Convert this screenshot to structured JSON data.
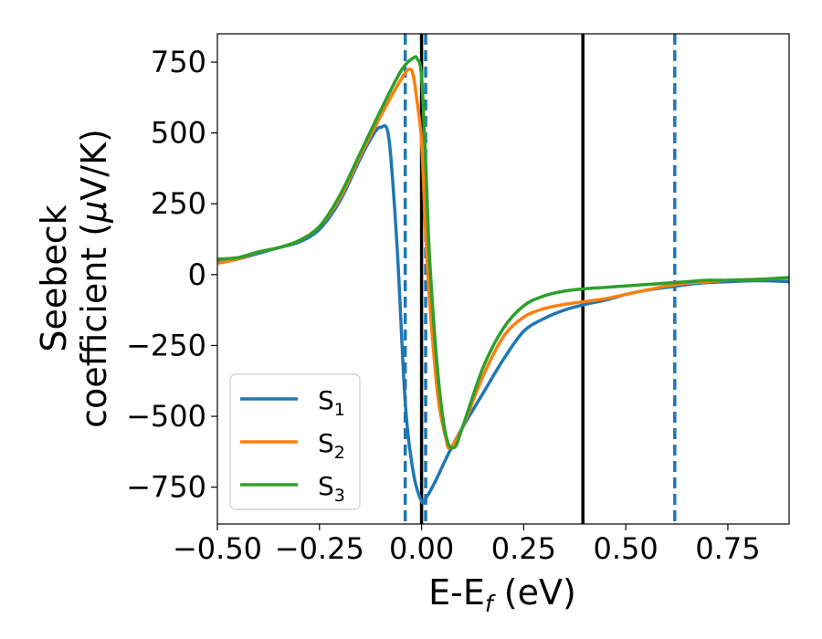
{
  "chart_data": {
    "type": "line",
    "xlabel": "E-E",
    "xlabel_sub": "f",
    "xlabel_unit": " (eV)",
    "ylabel_line1": "Seebeck",
    "ylabel_line2_prefix": "coefficient  (",
    "ylabel_mu": "μ",
    "ylabel_line2_suffix": "V/K)",
    "xlim": [
      -0.5,
      0.9
    ],
    "ylim": [
      -880,
      850
    ],
    "xticks": [
      -0.5,
      -0.25,
      0.0,
      0.25,
      0.5,
      0.75
    ],
    "xtick_labels": [
      "−0.50",
      "−0.25",
      "0.00",
      "0.25",
      "0.50",
      "0.75"
    ],
    "yticks": [
      750,
      500,
      250,
      0,
      -250,
      -500,
      -750
    ],
    "ytick_labels": [
      "750",
      "500",
      "250",
      "0",
      "−250",
      "−500",
      "−750"
    ],
    "grid": false,
    "legend_position": "lower-left",
    "vlines_solid": [
      0.0,
      0.395
    ],
    "vlines_dashed": [
      -0.04,
      0.01,
      0.62
    ],
    "vline_solid_color": "#000000",
    "vline_dashed_color": "#1f77b4",
    "series": [
      {
        "name": "S",
        "sub": "1",
        "color": "#1f77b4",
        "x": [
          -0.5,
          -0.45,
          -0.4,
          -0.35,
          -0.3,
          -0.25,
          -0.2,
          -0.15,
          -0.12,
          -0.1,
          -0.08,
          -0.06,
          -0.04,
          -0.02,
          0.0,
          0.01,
          0.03,
          0.05,
          0.07,
          0.1,
          0.15,
          0.2,
          0.25,
          0.3,
          0.35,
          0.4,
          0.45,
          0.5,
          0.55,
          0.6,
          0.65,
          0.7,
          0.75,
          0.8,
          0.85,
          0.9
        ],
        "y": [
          45,
          55,
          75,
          95,
          115,
          160,
          260,
          410,
          490,
          520,
          480,
          100,
          -450,
          -700,
          -800,
          -790,
          -740,
          -680,
          -620,
          -540,
          -420,
          -300,
          -200,
          -155,
          -125,
          -105,
          -90,
          -70,
          -55,
          -45,
          -35,
          -28,
          -25,
          -22,
          -22,
          -25
        ]
      },
      {
        "name": "S",
        "sub": "2",
        "color": "#ff7f0e",
        "x": [
          -0.5,
          -0.45,
          -0.4,
          -0.35,
          -0.3,
          -0.25,
          -0.2,
          -0.15,
          -0.1,
          -0.05,
          -0.03,
          -0.02,
          -0.01,
          0.0,
          0.01,
          0.02,
          0.04,
          0.06,
          0.07,
          0.1,
          0.15,
          0.2,
          0.25,
          0.3,
          0.35,
          0.4,
          0.45,
          0.5,
          0.55,
          0.6,
          0.65,
          0.7,
          0.75,
          0.8,
          0.85,
          0.9
        ],
        "y": [
          40,
          55,
          80,
          95,
          120,
          170,
          270,
          420,
          560,
          690,
          725,
          700,
          600,
          470,
          150,
          -100,
          -430,
          -580,
          -610,
          -540,
          -360,
          -220,
          -150,
          -120,
          -105,
          -95,
          -85,
          -70,
          -55,
          -40,
          -30,
          -25,
          -20,
          -18,
          -15,
          -12
        ]
      },
      {
        "name": "S",
        "sub": "3",
        "color": "#2ca02c",
        "x": [
          -0.5,
          -0.45,
          -0.4,
          -0.35,
          -0.3,
          -0.25,
          -0.2,
          -0.15,
          -0.1,
          -0.05,
          -0.02,
          -0.01,
          0.0,
          0.01,
          0.02,
          0.04,
          0.06,
          0.08,
          0.1,
          0.15,
          0.2,
          0.25,
          0.3,
          0.35,
          0.4,
          0.45,
          0.5,
          0.55,
          0.6,
          0.65,
          0.7,
          0.75,
          0.8,
          0.85,
          0.9
        ],
        "y": [
          55,
          60,
          80,
          95,
          120,
          170,
          280,
          430,
          580,
          720,
          765,
          760,
          700,
          400,
          50,
          -350,
          -570,
          -610,
          -540,
          -330,
          -190,
          -110,
          -75,
          -58,
          -50,
          -45,
          -40,
          -35,
          -30,
          -25,
          -20,
          -20,
          -18,
          -15,
          -10
        ]
      }
    ]
  }
}
